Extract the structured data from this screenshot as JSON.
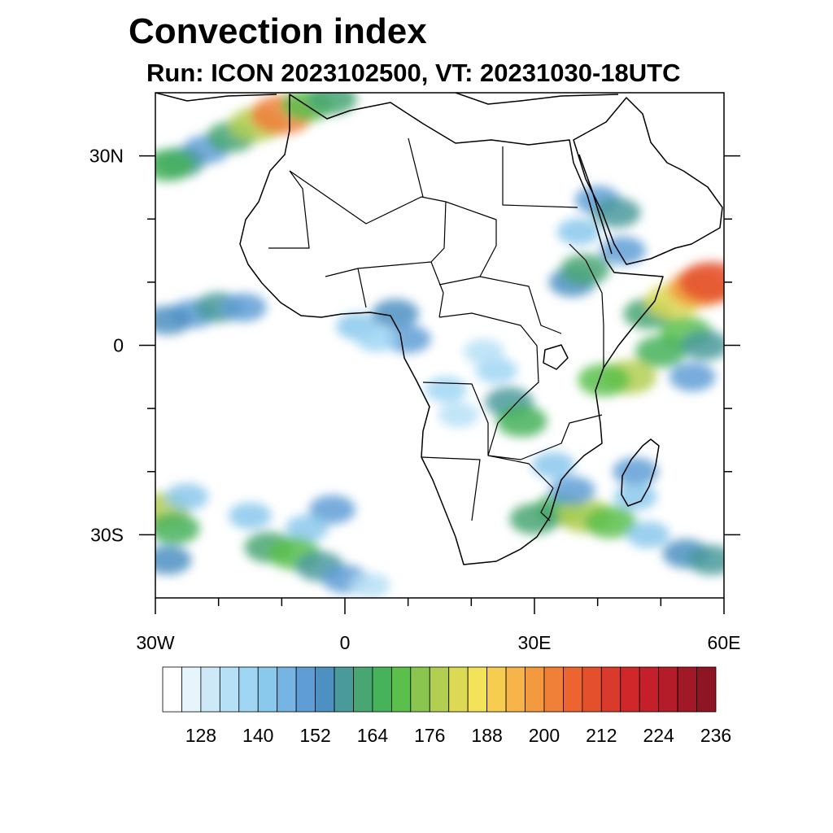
{
  "title": "Convection index",
  "subtitle": "Run: ICON 2023102500,  VT: 20231030-18UTC",
  "map": {
    "lon_range": [
      -30,
      60
    ],
    "lat_range": [
      -40,
      40
    ],
    "lon_ticks": [
      {
        "value": -30,
        "label": "30W"
      },
      {
        "value": 0,
        "label": "0"
      },
      {
        "value": 30,
        "label": "30E"
      },
      {
        "value": 60,
        "label": "60E"
      }
    ],
    "lat_ticks": [
      {
        "value": 30,
        "label": "30N"
      },
      {
        "value": 0,
        "label": "0"
      },
      {
        "value": -30,
        "label": "30S"
      }
    ],
    "minor_lon_ticks": [
      -20,
      -10,
      10,
      20,
      40,
      50
    ],
    "minor_lat_ticks": [
      20,
      10,
      -10,
      -20
    ]
  },
  "chart_data": {
    "type": "heatmap",
    "title": "Convection index",
    "subtitle": "Run: ICON 2023102500,  VT: 20231030-18UTC",
    "xlabel": "",
    "ylabel": "",
    "xlim": [
      -30,
      60
    ],
    "ylim": [
      -40,
      40
    ],
    "colorbar": {
      "levels": [
        120,
        124,
        128,
        132,
        136,
        140,
        144,
        148,
        152,
        156,
        160,
        164,
        168,
        172,
        176,
        180,
        184,
        188,
        192,
        196,
        200,
        204,
        208,
        212,
        216,
        220,
        224,
        228,
        232,
        236
      ],
      "labels": [
        "128",
        "140",
        "152",
        "164",
        "176",
        "188",
        "200",
        "212",
        "224",
        "236"
      ],
      "colors": [
        "#ffffff",
        "#e6f4fb",
        "#cde9f8",
        "#b6e0f6",
        "#9fd6f3",
        "#8ac8ec",
        "#75b4e3",
        "#5f9dd6",
        "#4d90c2",
        "#4a9a9c",
        "#48a673",
        "#46b25a",
        "#5bbf4c",
        "#8ac64f",
        "#b3cf52",
        "#dcd954",
        "#f2e35b",
        "#f7cd4f",
        "#f6b44a",
        "#f39a41",
        "#f07f38",
        "#ec6530",
        "#e4502c",
        "#da3a2b",
        "#d0282a",
        "#c41f2a",
        "#b41c29",
        "#a11927",
        "#8e1524"
      ]
    },
    "cells": [
      {
        "lon": -22,
        "lat": 31,
        "v": 150
      },
      {
        "lon": -18,
        "lat": 33,
        "v": 160
      },
      {
        "lon": -14,
        "lat": 35,
        "v": 176
      },
      {
        "lon": -10,
        "lat": 36.5,
        "v": 200
      },
      {
        "lon": -6,
        "lat": 38,
        "v": 168
      },
      {
        "lon": -26,
        "lat": 29,
        "v": 156
      },
      {
        "lon": -2,
        "lat": 39,
        "v": 160
      },
      {
        "lon": -28,
        "lat": 28.5,
        "v": 165
      },
      {
        "lon": -24,
        "lat": 5,
        "v": 150
      },
      {
        "lon": -20,
        "lat": 6,
        "v": 156
      },
      {
        "lon": -16,
        "lat": 6,
        "v": 148
      },
      {
        "lon": -28,
        "lat": 4,
        "v": 152
      },
      {
        "lon": 2,
        "lat": 3,
        "v": 140
      },
      {
        "lon": 8,
        "lat": 5,
        "v": 152
      },
      {
        "lon": 10,
        "lat": 1,
        "v": 148
      },
      {
        "lon": 5,
        "lat": 1,
        "v": 136
      },
      {
        "lon": 24,
        "lat": -4,
        "v": 136
      },
      {
        "lon": 26,
        "lat": -9,
        "v": 156
      },
      {
        "lon": 28,
        "lat": -12,
        "v": 164
      },
      {
        "lon": 22,
        "lat": -1,
        "v": 132
      },
      {
        "lon": 16,
        "lat": -7,
        "v": 136
      },
      {
        "lon": 18,
        "lat": -11,
        "v": 132
      },
      {
        "lon": 36,
        "lat": 10,
        "v": 152
      },
      {
        "lon": 38,
        "lat": 12,
        "v": 160
      },
      {
        "lon": 40,
        "lat": 23,
        "v": 148
      },
      {
        "lon": 43,
        "lat": 21,
        "v": 156
      },
      {
        "lon": 44,
        "lat": 15,
        "v": 148
      },
      {
        "lon": 37,
        "lat": 18,
        "v": 140
      },
      {
        "lon": 48,
        "lat": 5,
        "v": 160
      },
      {
        "lon": 52,
        "lat": 7,
        "v": 180
      },
      {
        "lon": 56,
        "lat": 9,
        "v": 196
      },
      {
        "lon": 58,
        "lat": 10,
        "v": 208
      },
      {
        "lon": 54,
        "lat": 2,
        "v": 168
      },
      {
        "lon": 50,
        "lat": -1,
        "v": 164
      },
      {
        "lon": 45,
        "lat": -5,
        "v": 176
      },
      {
        "lon": 41,
        "lat": -5.5,
        "v": 168
      },
      {
        "lon": 57,
        "lat": 0,
        "v": 156
      },
      {
        "lon": 55,
        "lat": -5,
        "v": 150
      },
      {
        "lon": 34,
        "lat": -26,
        "v": 164
      },
      {
        "lon": 38,
        "lat": -27,
        "v": 176
      },
      {
        "lon": 42,
        "lat": -28,
        "v": 168
      },
      {
        "lon": 30,
        "lat": -27.5,
        "v": 160
      },
      {
        "lon": 36,
        "lat": -23,
        "v": 148
      },
      {
        "lon": 33,
        "lat": -19,
        "v": 140
      },
      {
        "lon": 46,
        "lat": -20,
        "v": 148
      },
      {
        "lon": 46,
        "lat": -24,
        "v": 140
      },
      {
        "lon": 48,
        "lat": -30,
        "v": 140
      },
      {
        "lon": 54,
        "lat": -33,
        "v": 152
      },
      {
        "lon": 58,
        "lat": -34,
        "v": 156
      },
      {
        "lon": -2,
        "lat": -26,
        "v": 150
      },
      {
        "lon": -6,
        "lat": -29,
        "v": 140
      },
      {
        "lon": -12,
        "lat": -32,
        "v": 160
      },
      {
        "lon": -8,
        "lat": -33,
        "v": 168
      },
      {
        "lon": -4,
        "lat": -35,
        "v": 156
      },
      {
        "lon": 0,
        "lat": -37,
        "v": 148
      },
      {
        "lon": 4,
        "lat": -38,
        "v": 132
      },
      {
        "lon": -15,
        "lat": -27,
        "v": 140
      },
      {
        "lon": -29,
        "lat": -26,
        "v": 176
      },
      {
        "lon": -27,
        "lat": -29,
        "v": 164
      },
      {
        "lon": -28,
        "lat": -34,
        "v": 152
      },
      {
        "lon": -25,
        "lat": -24,
        "v": 140
      }
    ]
  }
}
